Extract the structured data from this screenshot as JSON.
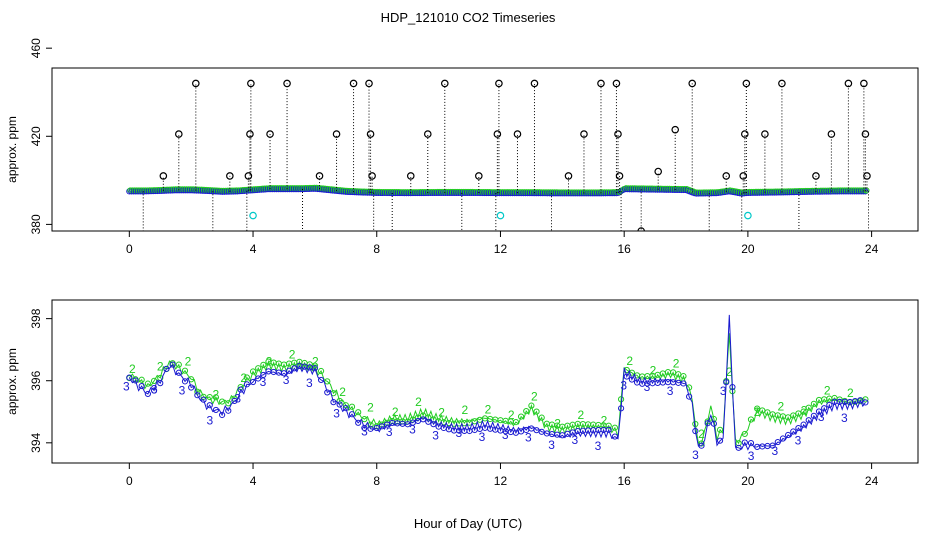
{
  "figure": {
    "title": "HDP_121010  CO2 Timeseries",
    "xlabel": "Hour of Day (UTC)"
  },
  "colors": {
    "frame": "#000000",
    "black_series": "#000000",
    "cyan_series": "#00c8c8",
    "blue_series": "#1a1ad0",
    "green_series": "#22cc22"
  },
  "chart_data": [
    {
      "type": "scatter",
      "panel": "top",
      "title": "",
      "xlabel": "",
      "ylabel": "approx. ppm",
      "xlim": [
        -2.5,
        25.5
      ],
      "ylim": [
        377,
        451
      ],
      "xticks": [
        0,
        4,
        8,
        12,
        16,
        20,
        24
      ],
      "yticks": [
        380,
        420,
        460
      ],
      "baseline": [
        [
          0,
          395
        ],
        [
          0.5,
          395
        ],
        [
          1,
          395.2
        ],
        [
          1.5,
          395.5
        ],
        [
          2,
          395.5
        ],
        [
          2.5,
          395.2
        ],
        [
          3,
          394.8
        ],
        [
          3.5,
          395
        ],
        [
          4,
          395.5
        ],
        [
          4.5,
          396
        ],
        [
          5,
          396
        ],
        [
          5.5,
          396
        ],
        [
          6,
          396.2
        ],
        [
          6.5,
          395.5
        ],
        [
          7,
          394.8
        ],
        [
          7.5,
          394.5
        ],
        [
          8,
          394.3
        ],
        [
          9,
          394.2
        ],
        [
          10,
          394.3
        ],
        [
          11,
          394.3
        ],
        [
          12,
          394.2
        ],
        [
          13,
          394.2
        ],
        [
          14,
          394.1
        ],
        [
          15,
          394.1
        ],
        [
          15.8,
          394.2
        ],
        [
          16,
          396
        ],
        [
          17,
          395.8
        ],
        [
          18,
          395.6
        ],
        [
          18.3,
          394
        ],
        [
          19,
          394.2
        ],
        [
          19.4,
          395
        ],
        [
          19.8,
          394
        ],
        [
          20,
          394.3
        ],
        [
          21,
          394.5
        ],
        [
          22,
          394.8
        ],
        [
          23,
          395
        ],
        [
          23.8,
          395
        ]
      ],
      "spikes": [
        {
          "x": 0.45,
          "y": 375
        },
        {
          "x": 1.1,
          "y": 402
        },
        {
          "x": 1.6,
          "y": 421
        },
        {
          "x": 2.15,
          "y": 444
        },
        {
          "x": 2.7,
          "y": 375
        },
        {
          "x": 3.25,
          "y": 402
        },
        {
          "x": 3.8,
          "y": 375
        },
        {
          "x": 3.85,
          "y": 402
        },
        {
          "x": 3.9,
          "y": 421
        },
        {
          "x": 3.93,
          "y": 444
        },
        {
          "x": 4.55,
          "y": 421
        },
        {
          "x": 5.1,
          "y": 444
        },
        {
          "x": 5.6,
          "y": 375
        },
        {
          "x": 6.15,
          "y": 402
        },
        {
          "x": 6.7,
          "y": 421
        },
        {
          "x": 7.25,
          "y": 444
        },
        {
          "x": 7.75,
          "y": 444
        },
        {
          "x": 7.8,
          "y": 421
        },
        {
          "x": 7.85,
          "y": 402
        },
        {
          "x": 7.9,
          "y": 375
        },
        {
          "x": 8.5,
          "y": 375
        },
        {
          "x": 9.1,
          "y": 402
        },
        {
          "x": 9.65,
          "y": 421
        },
        {
          "x": 10.2,
          "y": 444
        },
        {
          "x": 10.75,
          "y": 375
        },
        {
          "x": 11.3,
          "y": 402
        },
        {
          "x": 11.85,
          "y": 375
        },
        {
          "x": 11.9,
          "y": 421
        },
        {
          "x": 11.95,
          "y": 444
        },
        {
          "x": 12.55,
          "y": 421
        },
        {
          "x": 13.1,
          "y": 444
        },
        {
          "x": 13.65,
          "y": 375
        },
        {
          "x": 14.2,
          "y": 402
        },
        {
          "x": 14.7,
          "y": 421
        },
        {
          "x": 15.25,
          "y": 444
        },
        {
          "x": 15.75,
          "y": 444
        },
        {
          "x": 15.8,
          "y": 421
        },
        {
          "x": 15.85,
          "y": 402
        },
        {
          "x": 15.9,
          "y": 375
        },
        {
          "x": 16.55,
          "y": 377
        },
        {
          "x": 17.1,
          "y": 404
        },
        {
          "x": 17.65,
          "y": 423
        },
        {
          "x": 18.2,
          "y": 444
        },
        {
          "x": 18.75,
          "y": 375
        },
        {
          "x": 19.3,
          "y": 402
        },
        {
          "x": 19.8,
          "y": 375
        },
        {
          "x": 19.85,
          "y": 402
        },
        {
          "x": 19.9,
          "y": 421
        },
        {
          "x": 19.95,
          "y": 444
        },
        {
          "x": 20.55,
          "y": 421
        },
        {
          "x": 21.1,
          "y": 444
        },
        {
          "x": 21.65,
          "y": 375
        },
        {
          "x": 22.2,
          "y": 402
        },
        {
          "x": 22.7,
          "y": 421
        },
        {
          "x": 23.25,
          "y": 444
        },
        {
          "x": 23.75,
          "y": 444
        },
        {
          "x": 23.8,
          "y": 421
        },
        {
          "x": 23.85,
          "y": 402
        },
        {
          "x": 23.9,
          "y": 375
        }
      ],
      "cyan_points": [
        {
          "x": 4.0,
          "y": 384
        },
        {
          "x": 12.0,
          "y": 384
        },
        {
          "x": 20.0,
          "y": 384
        }
      ]
    },
    {
      "type": "line",
      "panel": "bottom",
      "title": "",
      "xlabel": "Hour of Day (UTC)",
      "ylabel": "approx. ppm",
      "xlim": [
        -2.5,
        25.5
      ],
      "ylim": [
        393.35,
        398.6
      ],
      "xticks": [
        0,
        4,
        8,
        12,
        16,
        20,
        24
      ],
      "yticks": [
        394,
        396,
        398
      ],
      "series": [
        {
          "name": "3",
          "color": "blue",
          "points": [
            [
              0,
              396.1
            ],
            [
              0.3,
              395.8
            ],
            [
              0.6,
              395.6
            ],
            [
              1,
              396.0
            ],
            [
              1.3,
              396.5
            ],
            [
              1.6,
              396.2
            ],
            [
              2,
              395.9
            ],
            [
              2.3,
              395.4
            ],
            [
              2.6,
              395.1
            ],
            [
              3,
              395.0
            ],
            [
              3.3,
              395.2
            ],
            [
              3.6,
              395.6
            ],
            [
              4,
              396.0
            ],
            [
              4.5,
              396.3
            ],
            [
              5,
              396.2
            ],
            [
              5.5,
              396.4
            ],
            [
              6,
              396.3
            ],
            [
              6.3,
              395.9
            ],
            [
              6.6,
              395.4
            ],
            [
              7,
              395.0
            ],
            [
              7.4,
              394.7
            ],
            [
              7.8,
              394.5
            ],
            [
              8,
              394.4
            ],
            [
              8.5,
              394.6
            ],
            [
              9,
              394.6
            ],
            [
              9.5,
              394.8
            ],
            [
              10,
              394.6
            ],
            [
              10.5,
              394.5
            ],
            [
              11,
              394.5
            ],
            [
              11.5,
              394.6
            ],
            [
              12,
              394.5
            ],
            [
              12.5,
              394.4
            ],
            [
              13,
              394.5
            ],
            [
              13.5,
              394.3
            ],
            [
              14,
              394.2
            ],
            [
              14.5,
              394.3
            ],
            [
              15,
              394.3
            ],
            [
              15.5,
              394.3
            ],
            [
              15.8,
              394.1
            ],
            [
              16.0,
              396.3
            ],
            [
              16.5,
              396.0
            ],
            [
              17,
              396.0
            ],
            [
              17.5,
              396.0
            ],
            [
              18,
              395.9
            ],
            [
              18.2,
              395.2
            ],
            [
              18.4,
              393.8
            ],
            [
              18.6,
              394.1
            ],
            [
              18.8,
              395.0
            ],
            [
              19.0,
              394.0
            ],
            [
              19.2,
              394.1
            ],
            [
              19.4,
              398.0
            ],
            [
              19.6,
              393.8
            ],
            [
              19.9,
              393.9
            ],
            [
              20.3,
              393.9
            ],
            [
              20.8,
              393.9
            ],
            [
              21.3,
              394.2
            ],
            [
              21.8,
              394.5
            ],
            [
              22.3,
              394.9
            ],
            [
              22.8,
              395.2
            ],
            [
              23.3,
              395.2
            ],
            [
              23.8,
              395.3
            ]
          ]
        },
        {
          "name": "2",
          "color": "green",
          "points": [
            [
              0,
              396.2
            ],
            [
              0.3,
              396.0
            ],
            [
              0.6,
              395.8
            ],
            [
              1,
              396.2
            ],
            [
              1.3,
              396.6
            ],
            [
              1.6,
              396.4
            ],
            [
              2,
              396.1
            ],
            [
              2.3,
              395.6
            ],
            [
              2.6,
              395.4
            ],
            [
              3,
              395.3
            ],
            [
              3.3,
              395.4
            ],
            [
              3.6,
              395.8
            ],
            [
              4,
              396.2
            ],
            [
              4.5,
              396.5
            ],
            [
              5,
              396.4
            ],
            [
              5.5,
              396.5
            ],
            [
              6,
              396.4
            ],
            [
              6.3,
              396.1
            ],
            [
              6.6,
              395.7
            ],
            [
              7,
              395.2
            ],
            [
              7.4,
              394.9
            ],
            [
              7.8,
              394.7
            ],
            [
              8,
              394.6
            ],
            [
              8.5,
              394.8
            ],
            [
              9,
              394.8
            ],
            [
              9.5,
              395.0
            ],
            [
              10,
              394.8
            ],
            [
              10.5,
              394.7
            ],
            [
              11,
              394.7
            ],
            [
              11.5,
              394.8
            ],
            [
              12,
              394.7
            ],
            [
              12.5,
              394.6
            ],
            [
              13,
              395.1
            ],
            [
              13.5,
              394.5
            ],
            [
              14,
              394.4
            ],
            [
              14.5,
              394.5
            ],
            [
              15,
              394.5
            ],
            [
              15.5,
              394.5
            ],
            [
              15.8,
              394.3
            ],
            [
              16.0,
              396.4
            ],
            [
              16.5,
              396.1
            ],
            [
              17,
              396.1
            ],
            [
              17.5,
              396.2
            ],
            [
              18,
              396.0
            ],
            [
              18.2,
              395.4
            ],
            [
              18.4,
              393.9
            ],
            [
              18.6,
              394.3
            ],
            [
              18.8,
              395.2
            ],
            [
              19.0,
              394.2
            ],
            [
              19.2,
              394.4
            ],
            [
              19.4,
              397.5
            ],
            [
              19.6,
              394.0
            ],
            [
              19.9,
              394.3
            ],
            [
              20.3,
              395.0
            ],
            [
              20.8,
              394.8
            ],
            [
              21.3,
              394.7
            ],
            [
              21.8,
              394.9
            ],
            [
              22.3,
              395.3
            ],
            [
              22.8,
              395.4
            ],
            [
              23.3,
              395.3
            ],
            [
              23.8,
              395.4
            ]
          ]
        }
      ]
    }
  ]
}
